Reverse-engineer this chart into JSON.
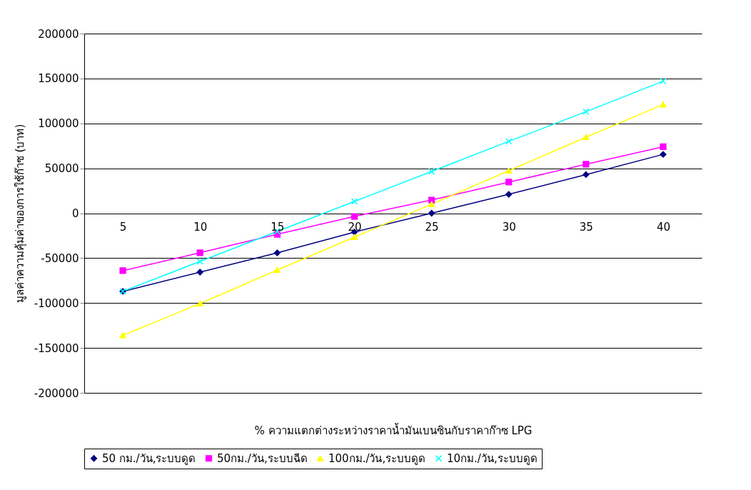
{
  "chart_data": {
    "type": "line",
    "xlabel": "% ความแตกต่างระหว่างราคาน้ำมันเบนซินกับราคาก๊าซ LPG",
    "ylabel": "มูลค่าความคุ้มค่าของการใช้ก๊าซ (บาท)",
    "categories": [
      "5",
      "10",
      "15",
      "20",
      "25",
      "30",
      "35",
      "40"
    ],
    "ylim": [
      -200000,
      200000
    ],
    "yticks": [
      -200000,
      -150000,
      -100000,
      -50000,
      0,
      50000,
      100000,
      150000,
      200000
    ],
    "grid": "y",
    "legend": "bottom",
    "line_style": "solid",
    "series": [
      {
        "name": "50 กม./วัน,ระบบดูด",
        "color": "#000080",
        "marker": "diamond",
        "values": [
          -87000,
          -65600,
          -44100,
          -21000,
          0,
          21000,
          43000,
          65500
        ]
      },
      {
        "name": "50กม./วัน,ระบบฉีด",
        "color": "#ff00ff",
        "marker": "square",
        "values": [
          -64000,
          -44000,
          -23500,
          -3600,
          14700,
          34600,
          54500,
          74000
        ]
      },
      {
        "name": "100กม./วัน,ระบบดูด",
        "color": "#ffff00",
        "marker": "triangle",
        "values": [
          -136000,
          -100600,
          -63200,
          -26600,
          10000,
          47300,
          84700,
          121000
        ]
      },
      {
        "name": "10กม./วัน,ระบบดูด",
        "color": "#00ffff",
        "marker": "cross",
        "values": [
          -87000,
          -53700,
          -20300,
          13100,
          46500,
          80000,
          113000,
          147000
        ]
      }
    ]
  }
}
